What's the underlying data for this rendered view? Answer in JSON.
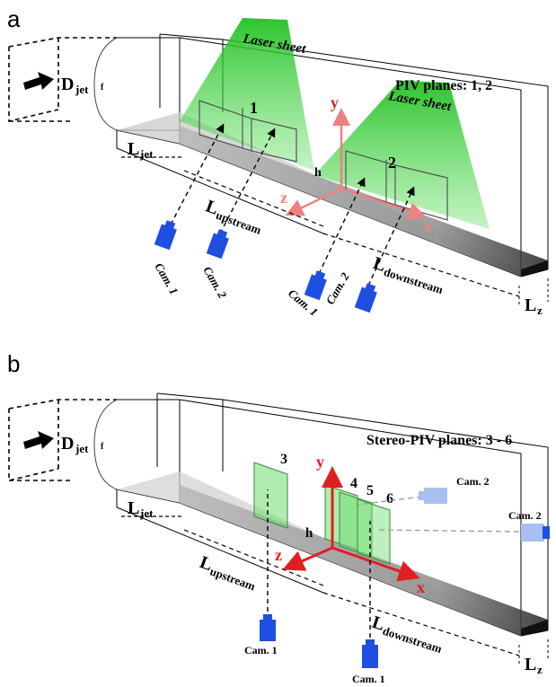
{
  "panel_a": {
    "letter": "a",
    "title": "PIV planes: 1, 2",
    "laser_sheet_1": "Laser sheet",
    "laser_sheet_2": "Laser sheet",
    "d_jet_main": "D",
    "d_jet_sub": "jet",
    "l_jet_main": "L",
    "l_jet_sub": "jet",
    "l_up_main": "L",
    "l_up_sub": "upstream",
    "l_down_main": "L",
    "l_down_sub": "downstream",
    "l_z_main": "L",
    "l_z_sub": "z",
    "plane_1": "1",
    "plane_2": "2",
    "f_label": "f",
    "h_label": "h",
    "axis_x": "x",
    "axis_y": "y",
    "axis_z": "z",
    "cam_1a": "Cam. 1",
    "cam_2a": "Cam. 2",
    "cam_1b": "Cam. 1",
    "cam_2b": "Cam. 2"
  },
  "panel_b": {
    "letter": "b",
    "title": "Stereo-PIV planes: 3 - 6",
    "d_jet_main": "D",
    "d_jet_sub": "jet",
    "l_jet_main": "L",
    "l_jet_sub": "jet",
    "l_up_main": "L",
    "l_up_sub": "upstream",
    "l_down_main": "L",
    "l_down_sub": "downstream",
    "l_z_main": "L",
    "l_z_sub": "z",
    "plane_3": "3",
    "plane_4": "4",
    "plane_5": "5",
    "plane_6": "6",
    "f_label": "f",
    "h_label": "h",
    "axis_x": "x",
    "axis_y": "y",
    "axis_z": "z",
    "cam_1a": "Cam. 1",
    "cam_1b": "Cam. 1",
    "cam_2a": "Cam. 2",
    "cam_2b": "Cam. 2"
  },
  "colors": {
    "laser_green": "#33cc33",
    "axis_red": "#e02020",
    "axis_red_light": "#f08080",
    "camera_blue": "#1f4fe0",
    "camera_blue_light": "#a8bff0",
    "floor_gray": "#8c8c8c"
  }
}
